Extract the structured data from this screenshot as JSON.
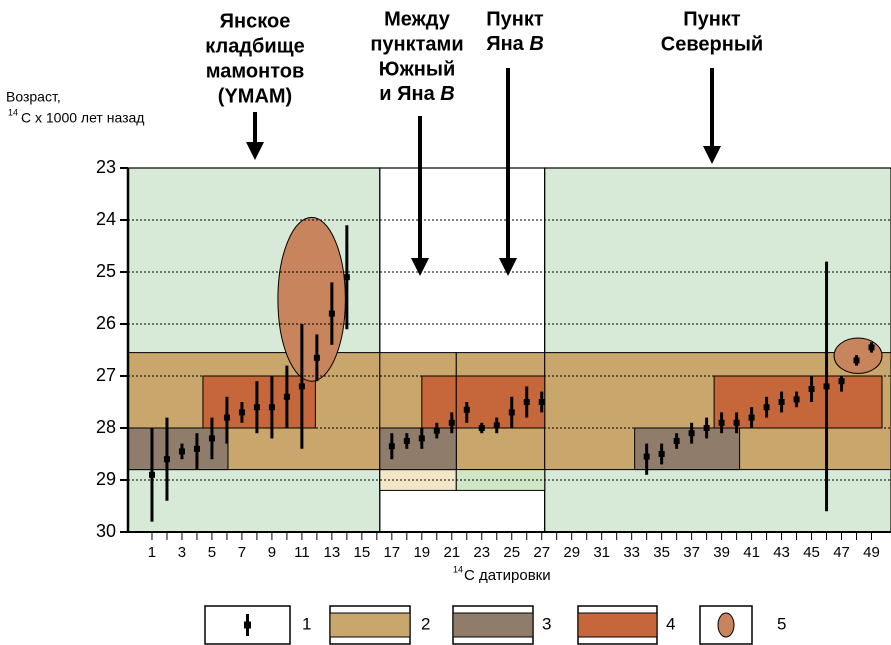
{
  "chart_data": {
    "type": "errorbar",
    "annotations": [
      {
        "lines": [
          "Янское",
          "кладбище",
          "мамонтов",
          "(YMAM)"
        ]
      },
      {
        "lines": [
          "Между",
          "пунктами",
          "Южный",
          [
            "и Яна ",
            "B"
          ]
        ]
      },
      {
        "lines": [
          "Пункт",
          [
            "Яна ",
            "B"
          ]
        ]
      },
      {
        "lines": [
          "Пункт",
          "Северный"
        ]
      }
    ],
    "ylabel": {
      "line1": "Возраст,",
      "sup": "14",
      "line2": "C x 1000 лет назад"
    },
    "xlabel": {
      "sup": "14",
      "text": "C датировки"
    },
    "xlim": [
      -0.6,
      50.3
    ],
    "ylim": [
      23,
      30
    ],
    "y_inverted": true,
    "yticks": [
      23,
      24,
      25,
      26,
      27,
      28,
      29,
      30
    ],
    "xticks": [
      1,
      3,
      5,
      7,
      9,
      11,
      13,
      15,
      17,
      19,
      21,
      23,
      25,
      27,
      29,
      31,
      33,
      35,
      37,
      39,
      41,
      43,
      45,
      47,
      49
    ],
    "xminor_ticks": [
      2,
      4,
      6,
      8,
      10,
      12,
      14,
      16,
      18,
      20,
      22,
      24,
      26,
      28,
      30,
      32,
      34,
      36,
      38,
      40,
      42,
      44,
      46,
      48
    ],
    "grid": true,
    "regions": [
      {
        "x": [
          -0.6,
          16.2
        ],
        "y": [
          23,
          30
        ],
        "color": "#d6ead7"
      },
      {
        "x": [
          16.2,
          27.2
        ],
        "y": [
          23,
          30
        ],
        "color": "#ffffff"
      },
      {
        "x": [
          27.2,
          50.3
        ],
        "y": [
          23,
          30
        ],
        "color": "#d6ead7"
      }
    ],
    "boxes": [
      {
        "x": [
          -0.6,
          16.2
        ],
        "y": [
          26.55,
          28.8
        ],
        "color": "#c9a66b"
      },
      {
        "x": [
          16.2,
          21.3
        ],
        "y": [
          26.55,
          28.8
        ],
        "color": "#c9a66b"
      },
      {
        "x": [
          21.3,
          27.2
        ],
        "y": [
          26.55,
          28.8
        ],
        "color": "#c9a66b"
      },
      {
        "x": [
          27.2,
          50.3
        ],
        "y": [
          26.55,
          28.8
        ],
        "color": "#c9a66b"
      },
      {
        "x": [
          16.2,
          21.3
        ],
        "y": [
          28.8,
          29.2
        ],
        "color": "#f4e7c9"
      },
      {
        "x": [
          21.3,
          27.2
        ],
        "y": [
          28.8,
          29.2
        ],
        "color": "#d0e6c6"
      },
      {
        "x": [
          -0.6,
          6.07
        ],
        "y": [
          28.0,
          28.8
        ],
        "color": "#907c6b"
      },
      {
        "x": [
          16.2,
          21.3
        ],
        "y": [
          28.0,
          28.8
        ],
        "color": "#907c6b"
      },
      {
        "x": [
          33.2,
          40.2
        ],
        "y": [
          28.0,
          28.8
        ],
        "color": "#907c6b"
      },
      {
        "x": [
          4.4,
          11.9
        ],
        "y": [
          27.0,
          28.0
        ],
        "color": "#c6673b"
      },
      {
        "x": [
          19.0,
          21.3
        ],
        "y": [
          27.0,
          28.0
        ],
        "color": "#c6673b"
      },
      {
        "x": [
          21.3,
          27.2
        ],
        "y": [
          27.0,
          28.0
        ],
        "color": "#c6673b"
      },
      {
        "x": [
          38.5,
          49.7
        ],
        "y": [
          27.0,
          28.0
        ],
        "color": "#c6673b"
      }
    ],
    "ellipses": [
      {
        "x": [
          9.4,
          13.9
        ],
        "y": [
          23.95,
          27.1
        ],
        "color": "#c8845c"
      },
      {
        "x": [
          46.5,
          49.7
        ],
        "y": [
          26.27,
          26.95
        ],
        "color": "#c8845c"
      }
    ],
    "points": {
      "color": "#000000",
      "x": [
        1,
        2,
        3,
        4,
        5,
        6,
        7,
        8,
        9,
        10,
        11,
        12,
        13,
        14,
        17,
        18,
        19,
        20,
        21,
        22,
        23,
        24,
        25,
        26,
        27,
        34,
        35,
        36,
        37,
        38,
        39,
        40,
        41,
        42,
        43,
        44,
        45,
        46,
        47,
        48,
        49
      ],
      "values": [
        28.9,
        28.6,
        28.45,
        28.4,
        28.2,
        27.8,
        27.7,
        27.6,
        27.6,
        27.4,
        27.2,
        26.65,
        25.8,
        25.1,
        28.35,
        28.25,
        28.2,
        28.05,
        27.9,
        27.65,
        28.0,
        27.95,
        27.7,
        27.5,
        27.5,
        28.55,
        28.5,
        28.25,
        28.1,
        28.0,
        27.9,
        27.9,
        27.8,
        27.6,
        27.5,
        27.45,
        27.25,
        27.2,
        27.1,
        26.7,
        26.45
      ],
      "low": [
        28.0,
        27.8,
        28.3,
        28.1,
        27.8,
        27.4,
        27.5,
        27.1,
        27.0,
        26.8,
        26.0,
        26.2,
        25.2,
        24.1,
        28.1,
        28.1,
        28.0,
        27.9,
        27.7,
        27.5,
        27.9,
        27.8,
        27.4,
        27.2,
        27.3,
        28.3,
        28.3,
        28.1,
        27.9,
        27.8,
        27.7,
        27.7,
        27.6,
        27.4,
        27.3,
        27.3,
        27.0,
        24.8,
        27.0,
        26.6,
        26.35
      ],
      "high": [
        29.8,
        29.4,
        28.6,
        28.8,
        28.6,
        28.3,
        27.9,
        28.1,
        28.2,
        28.0,
        28.4,
        27.1,
        26.4,
        26.1,
        28.6,
        28.4,
        28.4,
        28.2,
        28.1,
        27.9,
        28.1,
        28.1,
        28.0,
        27.8,
        27.7,
        28.9,
        28.7,
        28.4,
        28.3,
        28.2,
        28.1,
        28.1,
        28.0,
        27.8,
        27.7,
        27.6,
        27.5,
        29.6,
        27.3,
        26.8,
        26.55
      ]
    },
    "legend": [
      {
        "label": "1",
        "color": "#000000"
      },
      {
        "label": "2",
        "color": "#c9a66b"
      },
      {
        "label": "3",
        "color": "#907c6b"
      },
      {
        "label": "4",
        "color": "#c6673b"
      },
      {
        "label": "5",
        "color": "#c8845c"
      }
    ]
  }
}
